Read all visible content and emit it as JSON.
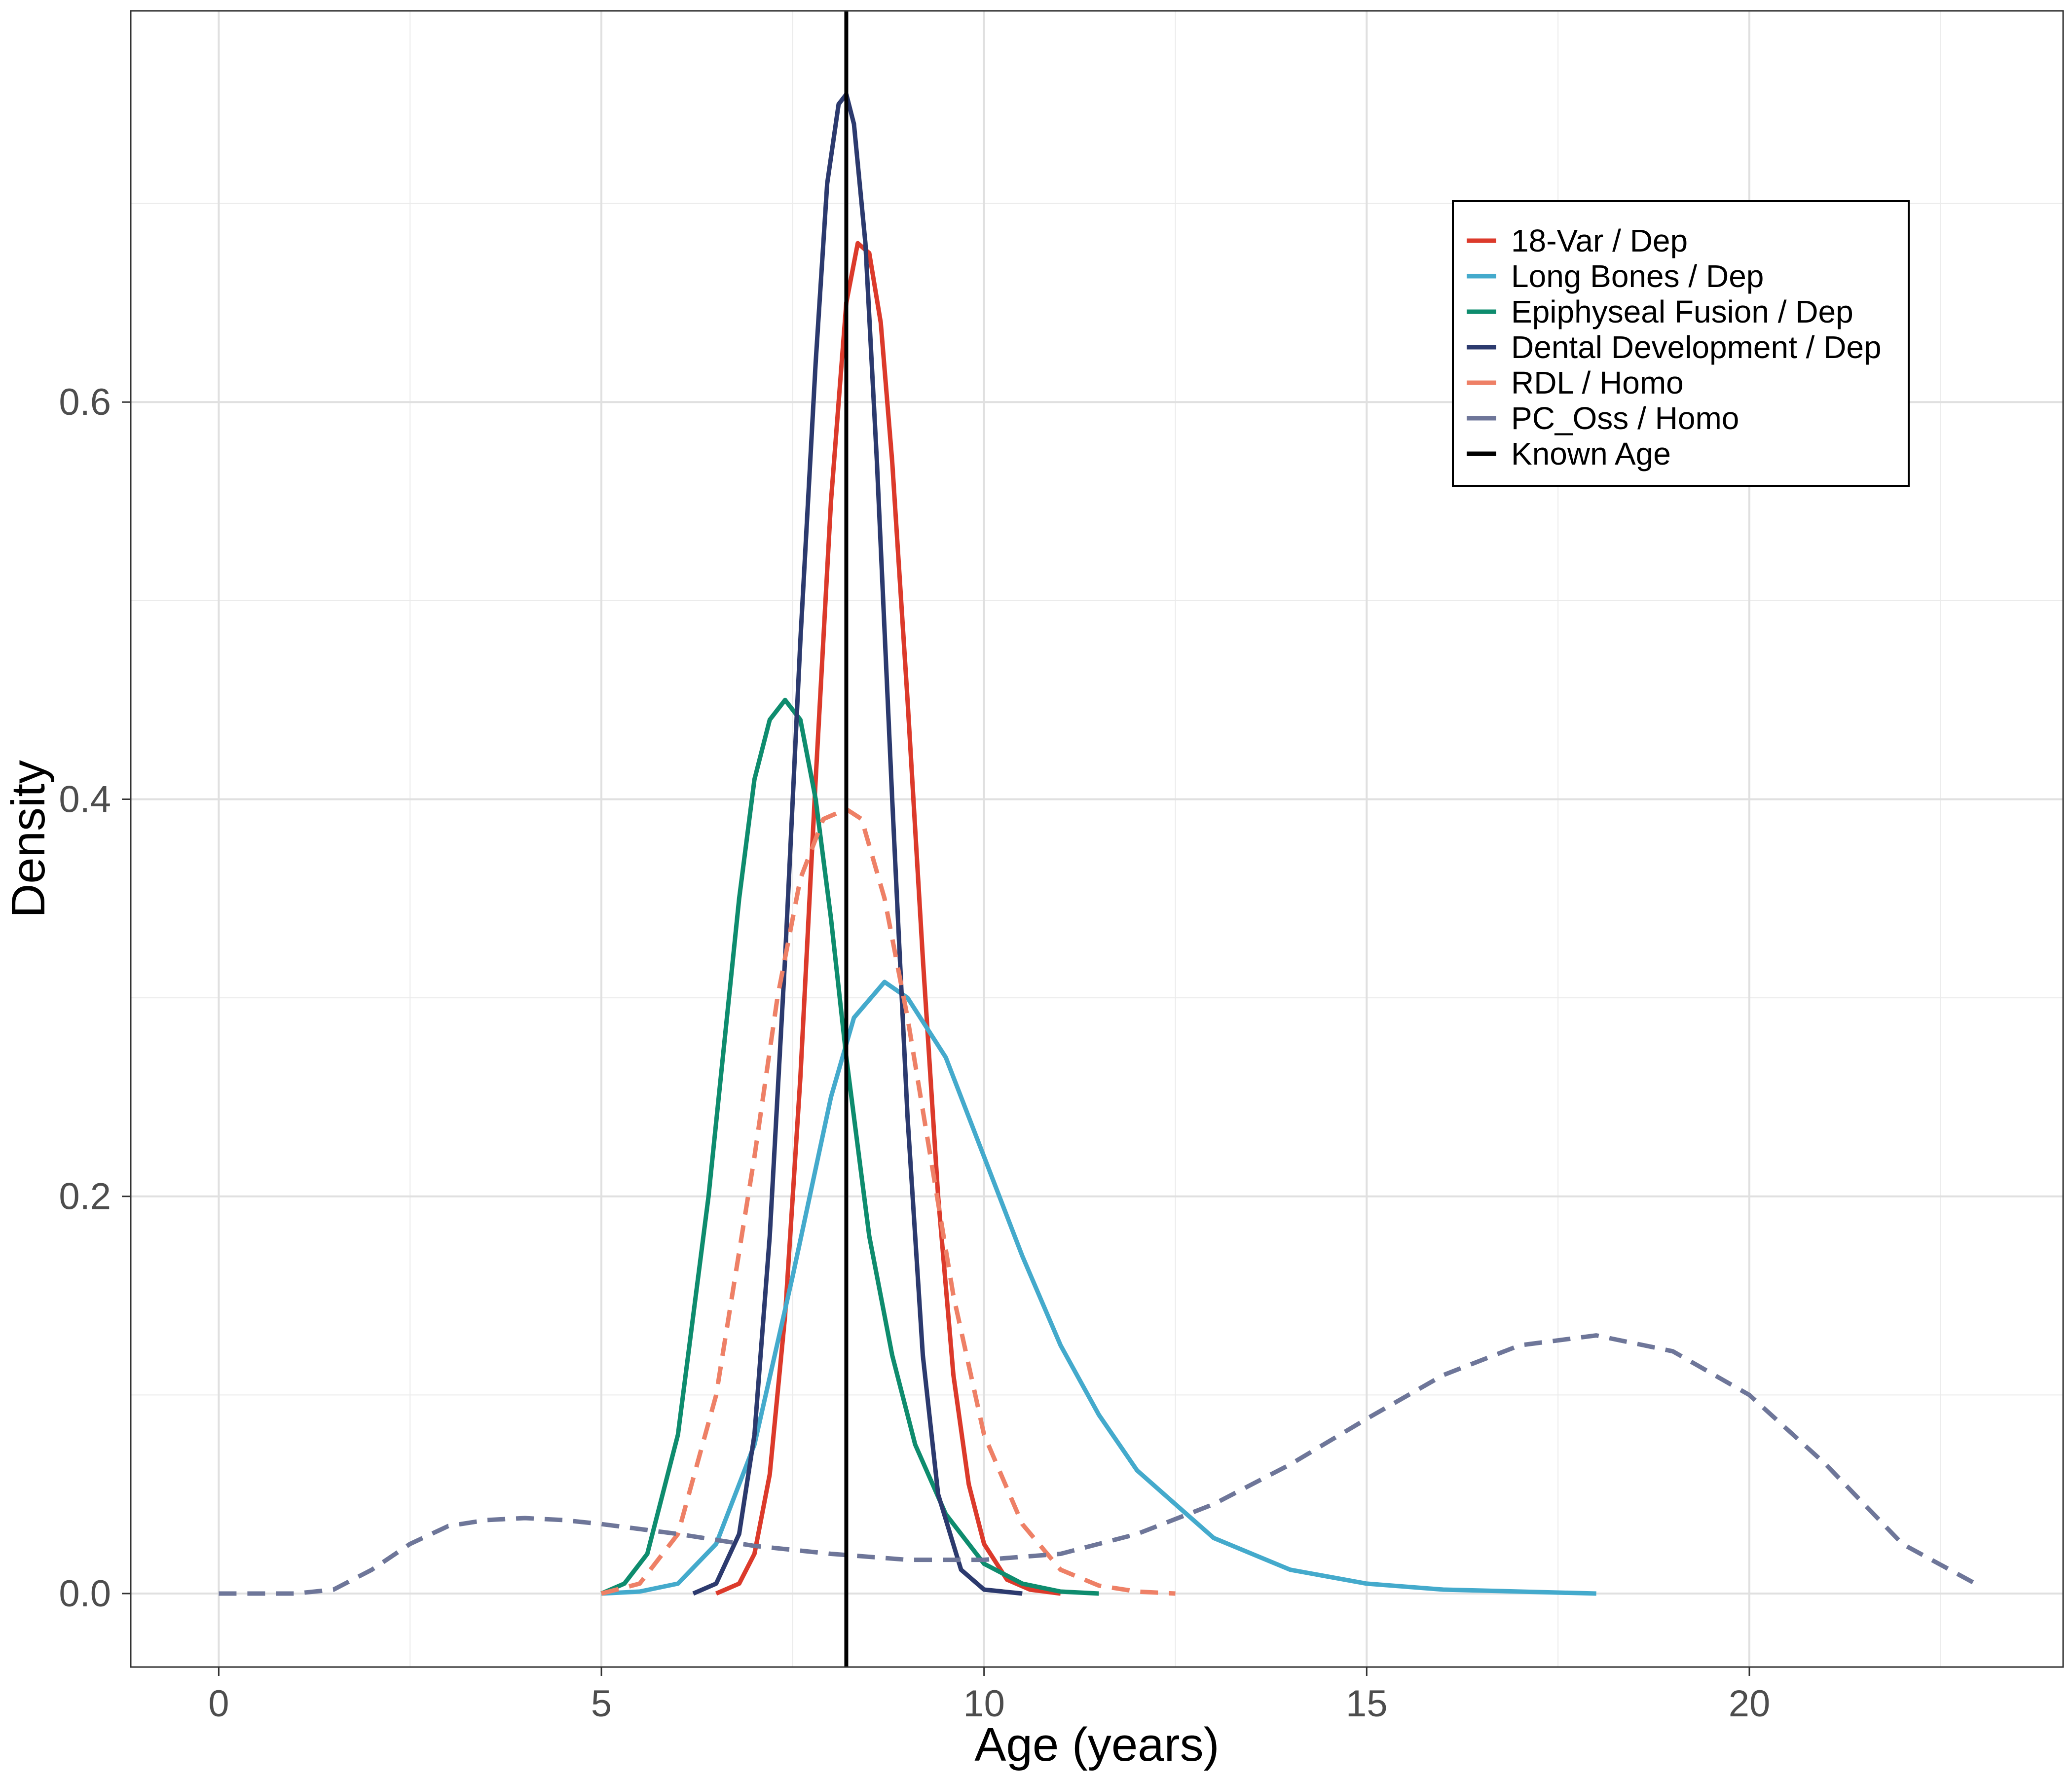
{
  "chart_data": {
    "type": "line",
    "title": "",
    "xlabel": "Age (years)",
    "ylabel": "Density",
    "xlim": [
      -1.15,
      24.1
    ],
    "ylim": [
      -0.037,
      0.797
    ],
    "x_ticks": [
      0,
      5,
      10,
      15,
      20
    ],
    "x_tick_labels": [
      "0",
      "5",
      "10",
      "15",
      "20"
    ],
    "y_ticks": [
      0.0,
      0.2,
      0.4,
      0.6
    ],
    "y_tick_labels": [
      "0.0",
      "0.2",
      "0.4",
      "0.6"
    ],
    "grid": true,
    "legend_position": "top-right",
    "reference_line": {
      "name": "Known Age",
      "x": 8.2,
      "color": "#000000"
    },
    "series": [
      {
        "name": "18-Var / Dep",
        "color": "#DC3A2B",
        "dashed": false,
        "x": [
          6.5,
          6.8,
          7.0,
          7.2,
          7.4,
          7.6,
          7.8,
          8.0,
          8.2,
          8.35,
          8.5,
          8.65,
          8.8,
          9.0,
          9.2,
          9.4,
          9.6,
          9.8,
          10.0,
          10.3,
          10.6,
          11.0
        ],
        "values": [
          0.0,
          0.005,
          0.02,
          0.06,
          0.14,
          0.26,
          0.41,
          0.55,
          0.65,
          0.68,
          0.675,
          0.64,
          0.57,
          0.45,
          0.32,
          0.2,
          0.11,
          0.055,
          0.025,
          0.007,
          0.002,
          0.0
        ]
      },
      {
        "name": "Long Bones / Dep",
        "color": "#44AACC",
        "dashed": false,
        "x": [
          5.0,
          5.5,
          6.0,
          6.5,
          7.0,
          7.5,
          8.0,
          8.3,
          8.7,
          9.0,
          9.5,
          10.0,
          10.5,
          11.0,
          11.5,
          12.0,
          13.0,
          14.0,
          15.0,
          16.0,
          17.0,
          18.0
        ],
        "values": [
          0.0,
          0.001,
          0.005,
          0.025,
          0.075,
          0.16,
          0.25,
          0.29,
          0.308,
          0.3,
          0.27,
          0.22,
          0.17,
          0.125,
          0.09,
          0.062,
          0.028,
          0.012,
          0.005,
          0.002,
          0.001,
          0.0
        ]
      },
      {
        "name": "Epiphyseal Fusion / Dep",
        "color": "#0E8C6E",
        "dashed": false,
        "x": [
          5.0,
          5.3,
          5.6,
          6.0,
          6.4,
          6.8,
          7.0,
          7.2,
          7.4,
          7.6,
          7.8,
          8.0,
          8.2,
          8.5,
          8.8,
          9.1,
          9.5,
          10.0,
          10.5,
          11.0,
          11.5
        ],
        "values": [
          0.0,
          0.005,
          0.02,
          0.08,
          0.2,
          0.35,
          0.41,
          0.44,
          0.45,
          0.44,
          0.4,
          0.34,
          0.27,
          0.18,
          0.12,
          0.075,
          0.04,
          0.015,
          0.005,
          0.001,
          0.0
        ]
      },
      {
        "name": "Dental Development / Dep",
        "color": "#2C3A6E",
        "dashed": false,
        "x": [
          6.2,
          6.5,
          6.8,
          7.0,
          7.2,
          7.4,
          7.6,
          7.8,
          7.95,
          8.1,
          8.2,
          8.3,
          8.45,
          8.6,
          8.8,
          9.0,
          9.2,
          9.4,
          9.7,
          10.0,
          10.5
        ],
        "values": [
          0.0,
          0.005,
          0.03,
          0.08,
          0.18,
          0.32,
          0.48,
          0.62,
          0.71,
          0.75,
          0.755,
          0.74,
          0.68,
          0.57,
          0.4,
          0.24,
          0.12,
          0.05,
          0.012,
          0.002,
          0.0
        ]
      },
      {
        "name": "RDL / Homo",
        "color": "#EE8066",
        "dashed": true,
        "x": [
          5.0,
          5.5,
          6.0,
          6.5,
          7.0,
          7.3,
          7.6,
          7.9,
          8.2,
          8.4,
          8.7,
          9.0,
          9.3,
          9.6,
          10.0,
          10.5,
          11.0,
          11.5,
          12.0,
          12.5
        ],
        "values": [
          0.0,
          0.005,
          0.03,
          0.1,
          0.22,
          0.3,
          0.36,
          0.39,
          0.395,
          0.39,
          0.35,
          0.29,
          0.22,
          0.15,
          0.08,
          0.035,
          0.012,
          0.004,
          0.001,
          0.0
        ]
      },
      {
        "name": "PC_Oss / Homo",
        "color": "#6E7699",
        "dashed": true,
        "x": [
          0.0,
          1.0,
          1.5,
          2.0,
          2.5,
          3.0,
          3.5,
          4.0,
          4.5,
          5.0,
          6.0,
          7.0,
          8.0,
          9.0,
          10.0,
          11.0,
          12.0,
          13.0,
          14.0,
          15.0,
          16.0,
          17.0,
          18.0,
          19.0,
          20.0,
          21.0,
          22.0,
          23.0
        ],
        "values": [
          0.0,
          0.0,
          0.002,
          0.012,
          0.025,
          0.034,
          0.037,
          0.038,
          0.037,
          0.035,
          0.03,
          0.024,
          0.02,
          0.017,
          0.017,
          0.02,
          0.03,
          0.045,
          0.065,
          0.088,
          0.11,
          0.125,
          0.13,
          0.122,
          0.1,
          0.065,
          0.025,
          0.004
        ]
      }
    ]
  }
}
